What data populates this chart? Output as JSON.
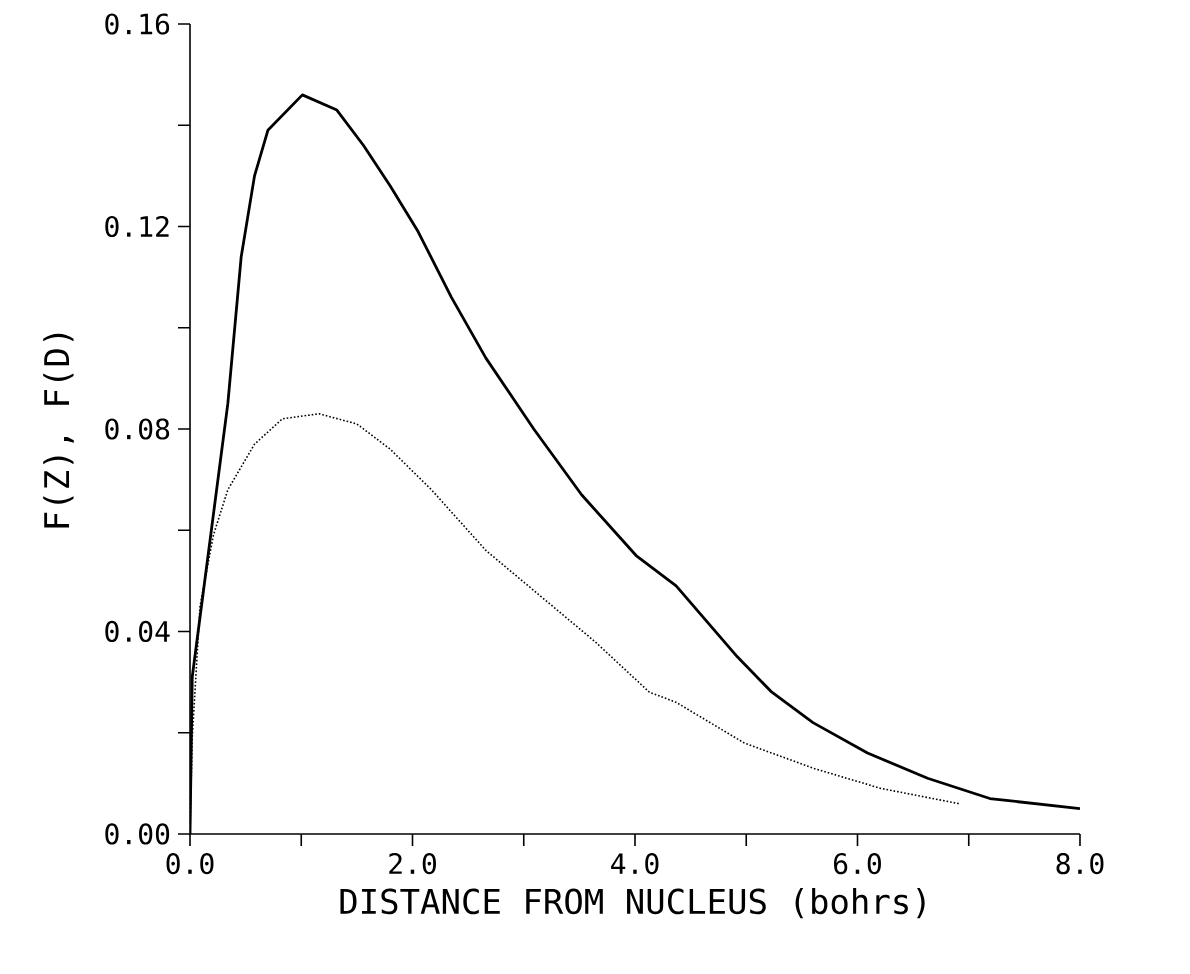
{
  "chart_data": {
    "type": "line",
    "xlabel": "DISTANCE FROM NUCLEUS (bohrs)",
    "ylabel": "F(Z), F(D)",
    "xlim": [
      0,
      8
    ],
    "ylim": [
      0,
      0.16
    ],
    "xticks": [
      {
        "value": 0,
        "label": "0.0"
      },
      {
        "value": 1,
        "label": null
      },
      {
        "value": 2,
        "label": "2.0"
      },
      {
        "value": 3,
        "label": null
      },
      {
        "value": 4,
        "label": "4.0"
      },
      {
        "value": 5,
        "label": null
      },
      {
        "value": 6,
        "label": "6.0"
      },
      {
        "value": 7,
        "label": null
      },
      {
        "value": 8,
        "label": "8.0"
      }
    ],
    "yticks": [
      {
        "value": 0,
        "label": "0.00"
      },
      {
        "value": 0.02,
        "label": null
      },
      {
        "value": 0.04,
        "label": "0.04"
      },
      {
        "value": 0.06,
        "label": null
      },
      {
        "value": 0.08,
        "label": "0.08"
      },
      {
        "value": 0.1,
        "label": null
      },
      {
        "value": 0.12,
        "label": "0.12"
      },
      {
        "value": 0.14,
        "label": null
      },
      {
        "value": 0.16,
        "label": "0.16"
      }
    ],
    "grid": false,
    "marker": "none",
    "series": [
      {
        "color": "#000000",
        "line_style": "solid",
        "x": [
          0,
          0.02,
          0.34,
          0.46,
          0.58,
          0.7,
          1.01,
          1.32,
          1.56,
          1.8,
          2.05,
          2.35,
          2.66,
          3.09,
          3.52,
          4.01,
          4.37,
          4.92,
          5.23,
          5.6,
          6.09,
          6.63,
          7.19,
          8.0
        ],
        "values": [
          0,
          0.031,
          0.085,
          0.114,
          0.13,
          0.139,
          0.146,
          0.143,
          0.136,
          0.128,
          0.119,
          0.106,
          0.094,
          0.08,
          0.067,
          0.055,
          0.049,
          0.035,
          0.028,
          0.022,
          0.016,
          0.011,
          0.007,
          0.005
        ]
      },
      {
        "color": "#000000",
        "line_style": "dotted",
        "x": [
          0,
          0.02,
          0.09,
          0.21,
          0.34,
          0.58,
          0.83,
          1.16,
          1.5,
          1.8,
          2.17,
          2.66,
          3.15,
          3.64,
          4.13,
          4.37,
          4.98,
          5.6,
          6.21,
          6.91
        ],
        "values": [
          0,
          0.019,
          0.045,
          0.059,
          0.068,
          0.077,
          0.082,
          0.083,
          0.081,
          0.076,
          0.068,
          0.056,
          0.047,
          0.038,
          0.028,
          0.026,
          0.018,
          0.013,
          0.009,
          0.006
        ]
      }
    ]
  }
}
